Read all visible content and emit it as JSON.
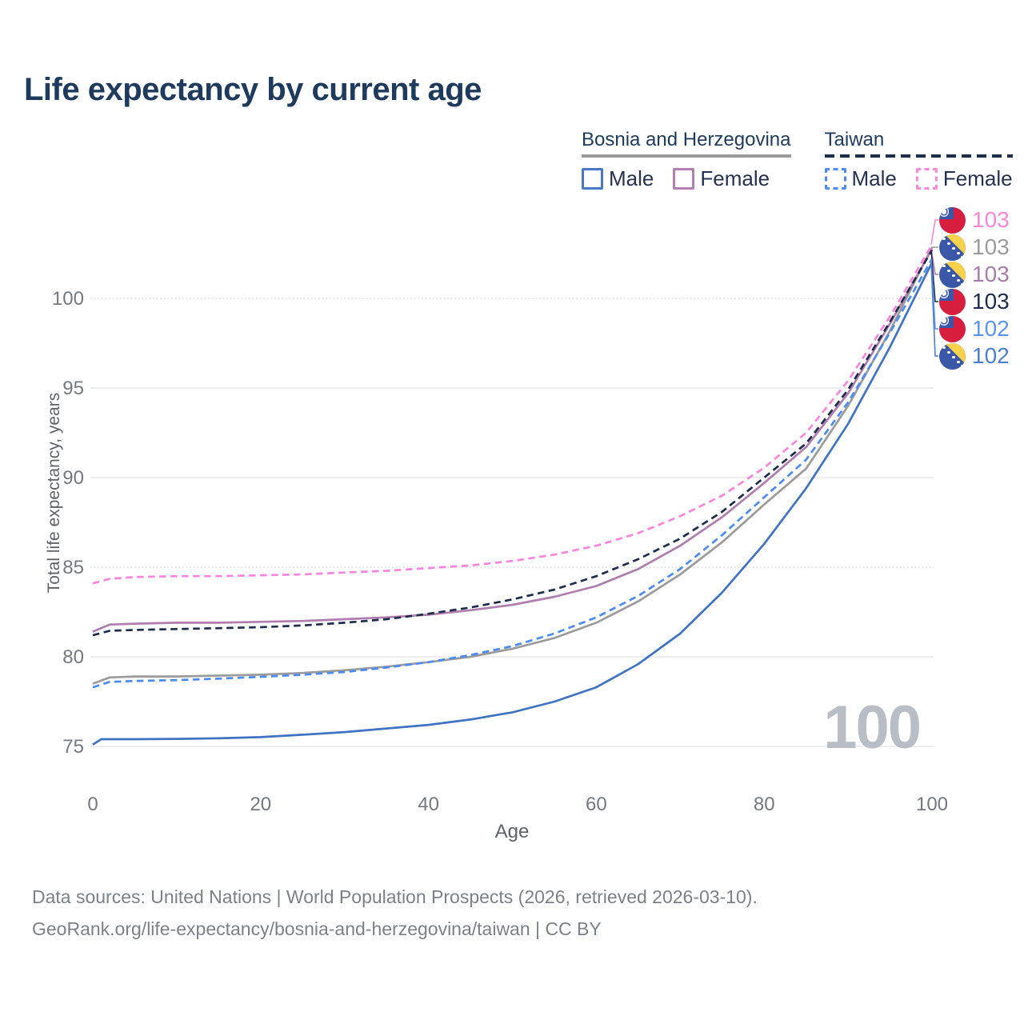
{
  "header": {
    "title": "Life expectancy by current age"
  },
  "legend": {
    "groups": [
      {
        "title": "Bosnia and Herzegovina",
        "underline_style": "solid",
        "underline_color": "#9b9b9b",
        "items": [
          {
            "label": "Male",
            "color": "#4779c4",
            "line_style": "solid"
          },
          {
            "label": "Female",
            "color": "#b27fb2",
            "line_style": "solid"
          }
        ]
      },
      {
        "title": "Taiwan",
        "underline_style": "dashed",
        "underline_color": "#1e2d4c",
        "items": [
          {
            "label": "Male",
            "color": "#4b8bf5",
            "line_style": "dashed"
          },
          {
            "label": "Female",
            "color": "#fb87e0",
            "line_style": "dashed"
          }
        ]
      }
    ]
  },
  "axes": {
    "y_label": "Total life expectancy, years",
    "x_label": "Age"
  },
  "watermark": {
    "text": "100"
  },
  "footer": {
    "line1": "Data sources: United Nations | World Population Prospects (2026, retrieved 2026-03-10).",
    "line2": "GeoRank.org/life-expectancy/bosnia-and-herzegovina/taiwan | CC BY"
  },
  "chart_data": {
    "type": "line",
    "title": "Life expectancy by current age",
    "xlabel": "Age",
    "ylabel": "Total life expectancy, years",
    "xlim": [
      0,
      100
    ],
    "ylim": [
      74,
      104
    ],
    "x_ticks": [
      0,
      20,
      40,
      60,
      80,
      100
    ],
    "y_ticks": [
      75,
      80,
      85,
      90,
      95,
      100
    ],
    "dotted_y_gridlines": [
      85,
      100
    ],
    "grid": "horizontal-only",
    "legend_position": "top-right",
    "hover_indicator_age": "100",
    "series": [
      {
        "id": "ba_total",
        "name": "Bosnia and Herzegovina — Total",
        "style": "solid",
        "color": "#9b9b9b",
        "points": [
          [
            0,
            78.5
          ],
          [
            2,
            78.85
          ],
          [
            5,
            78.9
          ],
          [
            10,
            78.9
          ],
          [
            15,
            78.95
          ],
          [
            20,
            79.0
          ],
          [
            25,
            79.1
          ],
          [
            30,
            79.25
          ],
          [
            35,
            79.45
          ],
          [
            40,
            79.7
          ],
          [
            45,
            80.0
          ],
          [
            50,
            80.45
          ],
          [
            55,
            81.05
          ],
          [
            60,
            81.9
          ],
          [
            65,
            83.1
          ],
          [
            70,
            84.6
          ],
          [
            75,
            86.4
          ],
          [
            80,
            88.5
          ],
          [
            85,
            90.5
          ],
          [
            90,
            94.0
          ],
          [
            95,
            98.2
          ],
          [
            100,
            102.85
          ]
        ]
      },
      {
        "id": "ba_female",
        "name": "Bosnia and Herzegovina — Female",
        "style": "solid",
        "color": "#af7eae",
        "points": [
          [
            0,
            81.4
          ],
          [
            2,
            81.8
          ],
          [
            5,
            81.85
          ],
          [
            10,
            81.9
          ],
          [
            15,
            81.9
          ],
          [
            20,
            81.95
          ],
          [
            25,
            82.0
          ],
          [
            30,
            82.1
          ],
          [
            35,
            82.2
          ],
          [
            40,
            82.35
          ],
          [
            45,
            82.6
          ],
          [
            50,
            82.9
          ],
          [
            55,
            83.35
          ],
          [
            60,
            83.95
          ],
          [
            65,
            84.9
          ],
          [
            70,
            86.2
          ],
          [
            75,
            87.8
          ],
          [
            80,
            89.7
          ],
          [
            85,
            91.7
          ],
          [
            90,
            94.7
          ],
          [
            95,
            98.6
          ],
          [
            100,
            102.75
          ]
        ]
      },
      {
        "id": "ba_male",
        "name": "Bosnia and Herzegovina — Male",
        "style": "solid",
        "color": "#4073c2",
        "points": [
          [
            0,
            75.1
          ],
          [
            1,
            75.4
          ],
          [
            5,
            75.4
          ],
          [
            10,
            75.42
          ],
          [
            15,
            75.45
          ],
          [
            20,
            75.52
          ],
          [
            25,
            75.65
          ],
          [
            30,
            75.8
          ],
          [
            35,
            76.0
          ],
          [
            40,
            76.2
          ],
          [
            45,
            76.5
          ],
          [
            50,
            76.9
          ],
          [
            55,
            77.5
          ],
          [
            60,
            78.3
          ],
          [
            65,
            79.6
          ],
          [
            70,
            81.3
          ],
          [
            75,
            83.6
          ],
          [
            80,
            86.3
          ],
          [
            85,
            89.4
          ],
          [
            90,
            93.0
          ],
          [
            95,
            97.3
          ],
          [
            100,
            102.0
          ]
        ]
      },
      {
        "id": "tw_total",
        "name": "Taiwan — Total",
        "style": "dashed",
        "color": "#1e2d4c",
        "points": [
          [
            0,
            81.2
          ],
          [
            2,
            81.45
          ],
          [
            5,
            81.5
          ],
          [
            10,
            81.55
          ],
          [
            15,
            81.6
          ],
          [
            20,
            81.65
          ],
          [
            25,
            81.75
          ],
          [
            30,
            81.9
          ],
          [
            35,
            82.1
          ],
          [
            40,
            82.4
          ],
          [
            45,
            82.75
          ],
          [
            50,
            83.2
          ],
          [
            55,
            83.75
          ],
          [
            60,
            84.5
          ],
          [
            65,
            85.45
          ],
          [
            70,
            86.6
          ],
          [
            75,
            88.1
          ],
          [
            80,
            90.0
          ],
          [
            85,
            91.9
          ],
          [
            90,
            94.9
          ],
          [
            95,
            98.7
          ],
          [
            100,
            102.7
          ]
        ]
      },
      {
        "id": "tw_male",
        "name": "Taiwan — Male",
        "style": "dashed",
        "color": "#4b8bf5",
        "points": [
          [
            0,
            78.3
          ],
          [
            2,
            78.6
          ],
          [
            5,
            78.65
          ],
          [
            10,
            78.7
          ],
          [
            15,
            78.78
          ],
          [
            20,
            78.88
          ],
          [
            25,
            79.0
          ],
          [
            30,
            79.15
          ],
          [
            35,
            79.4
          ],
          [
            40,
            79.7
          ],
          [
            45,
            80.1
          ],
          [
            50,
            80.6
          ],
          [
            55,
            81.3
          ],
          [
            60,
            82.2
          ],
          [
            65,
            83.4
          ],
          [
            70,
            84.9
          ],
          [
            75,
            86.8
          ],
          [
            80,
            88.9
          ],
          [
            85,
            91.0
          ],
          [
            90,
            94.2
          ],
          [
            95,
            98.1
          ],
          [
            100,
            102.2
          ]
        ]
      },
      {
        "id": "tw_female",
        "name": "Taiwan — Female",
        "style": "dashed",
        "color": "#fb85de",
        "points": [
          [
            0,
            84.1
          ],
          [
            2,
            84.35
          ],
          [
            5,
            84.45
          ],
          [
            10,
            84.5
          ],
          [
            15,
            84.5
          ],
          [
            20,
            84.55
          ],
          [
            25,
            84.6
          ],
          [
            30,
            84.7
          ],
          [
            35,
            84.8
          ],
          [
            40,
            84.95
          ],
          [
            45,
            85.1
          ],
          [
            50,
            85.35
          ],
          [
            55,
            85.7
          ],
          [
            60,
            86.2
          ],
          [
            65,
            86.9
          ],
          [
            70,
            87.85
          ],
          [
            75,
            89.0
          ],
          [
            80,
            90.55
          ],
          [
            85,
            92.5
          ],
          [
            90,
            95.4
          ],
          [
            95,
            99.0
          ],
          [
            100,
            103.0
          ]
        ]
      }
    ],
    "end_labels": [
      {
        "series_id": "tw_female",
        "flag": "taiwan",
        "value": "103",
        "color": "#f987dd"
      },
      {
        "series_id": "ba_total",
        "flag": "bosnia",
        "value": "103",
        "color": "#9b9b9b"
      },
      {
        "series_id": "ba_female",
        "flag": "bosnia",
        "value": "103",
        "color": "#a87cab"
      },
      {
        "series_id": "tw_total",
        "flag": "taiwan",
        "value": "103",
        "color": "#1f2d4d"
      },
      {
        "series_id": "tw_male",
        "flag": "taiwan",
        "value": "102",
        "color": "#5b95f2"
      },
      {
        "series_id": "ba_male",
        "flag": "bosnia",
        "value": "102",
        "color": "#4a7fd1"
      }
    ]
  }
}
